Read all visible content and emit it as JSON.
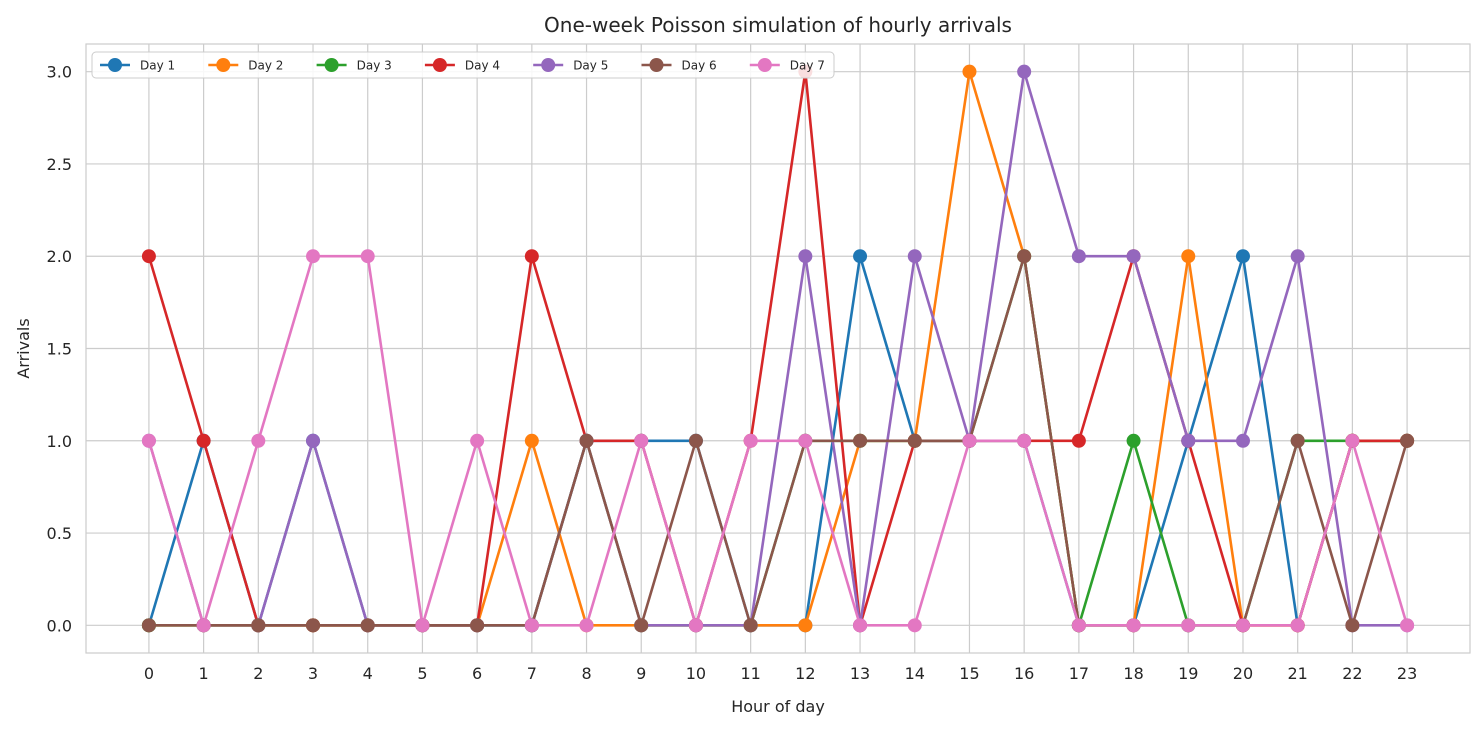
{
  "chart_data": {
    "type": "line",
    "title": "One-week Poisson simulation of hourly arrivals",
    "xlabel": "Hour of day",
    "ylabel": "Arrivals",
    "x": [
      0,
      1,
      2,
      3,
      4,
      5,
      6,
      7,
      8,
      9,
      10,
      11,
      12,
      13,
      14,
      15,
      16,
      17,
      18,
      19,
      20,
      21,
      22,
      23
    ],
    "x_tick_labels": [
      "0",
      "1",
      "2",
      "3",
      "4",
      "5",
      "6",
      "7",
      "8",
      "9",
      "10",
      "11",
      "12",
      "13",
      "14",
      "15",
      "16",
      "17",
      "18",
      "19",
      "20",
      "21",
      "22",
      "23"
    ],
    "y_tick_labels": [
      "0.0",
      "0.5",
      "1.0",
      "1.5",
      "2.0",
      "2.5",
      "3.0"
    ],
    "ylim": [
      -0.15,
      3.15
    ],
    "xlim": [
      -1.15,
      24.15
    ],
    "grid": true,
    "legend_position": "top-left",
    "series": [
      {
        "name": "Day 1",
        "color": "#1f77b4",
        "values": [
          0,
          1,
          0,
          1,
          0,
          0,
          0,
          0,
          1,
          1,
          1,
          0,
          0,
          2,
          1,
          1,
          1,
          0,
          0,
          1,
          2,
          0,
          1,
          1
        ]
      },
      {
        "name": "Day 2",
        "color": "#ff7f0e",
        "values": [
          0,
          0,
          0,
          0,
          0,
          0,
          0,
          1,
          0,
          0,
          0,
          0,
          0,
          1,
          1,
          3,
          2,
          0,
          0,
          2,
          0,
          0,
          1,
          1
        ]
      },
      {
        "name": "Day 3",
        "color": "#2ca02c",
        "values": [
          0,
          0,
          0,
          0,
          0,
          0,
          0,
          0,
          1,
          0,
          0,
          0,
          1,
          1,
          1,
          1,
          2,
          0,
          1,
          0,
          0,
          1,
          1,
          1
        ]
      },
      {
        "name": "Day 4",
        "color": "#d62728",
        "values": [
          2,
          1,
          0,
          0,
          0,
          0,
          0,
          2,
          1,
          1,
          0,
          1,
          3,
          0,
          1,
          1,
          1,
          1,
          2,
          1,
          0,
          0,
          1,
          1
        ]
      },
      {
        "name": "Day 5",
        "color": "#9467bd",
        "values": [
          1,
          0,
          0,
          1,
          0,
          0,
          0,
          0,
          1,
          0,
          0,
          0,
          2,
          0,
          2,
          1,
          3,
          2,
          2,
          1,
          1,
          2,
          0,
          0
        ]
      },
      {
        "name": "Day 6",
        "color": "#8c564b",
        "values": [
          0,
          0,
          0,
          0,
          0,
          0,
          0,
          0,
          1,
          0,
          1,
          0,
          1,
          1,
          1,
          1,
          2,
          0,
          0,
          0,
          0,
          1,
          0,
          1
        ]
      },
      {
        "name": "Day 7",
        "color": "#e377c2",
        "values": [
          1,
          0,
          1,
          2,
          2,
          0,
          1,
          0,
          0,
          1,
          0,
          1,
          1,
          0,
          0,
          1,
          1,
          0,
          0,
          0,
          0,
          0,
          1,
          0
        ]
      }
    ]
  }
}
